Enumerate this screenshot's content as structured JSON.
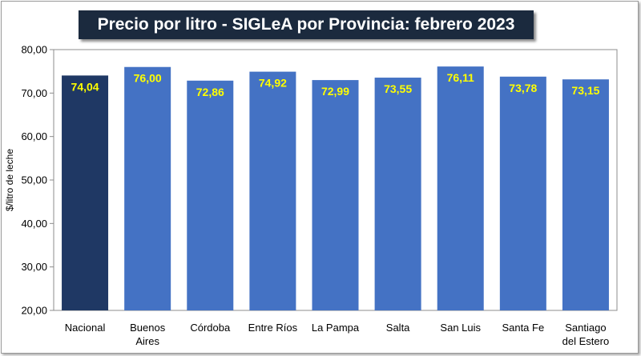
{
  "chart_data": {
    "type": "bar",
    "title": "Precio por litro - SIGLeA por Provincia: febrero 2023",
    "ylabel": "$/litro de leche",
    "xlabel": "",
    "ylim": [
      20,
      80
    ],
    "yticks": [
      "20,00",
      "30,00",
      "40,00",
      "50,00",
      "60,00",
      "70,00",
      "80,00"
    ],
    "categories": [
      [
        "Nacional"
      ],
      [
        "Buenos",
        "Aires"
      ],
      [
        "Córdoba"
      ],
      [
        "Entre Ríos"
      ],
      [
        "La Pampa"
      ],
      [
        "Salta"
      ],
      [
        "San Luis"
      ],
      [
        "Santa Fe"
      ],
      [
        "Santiago",
        "del Estero"
      ]
    ],
    "values": [
      74.04,
      76.0,
      72.86,
      74.92,
      72.99,
      73.55,
      76.11,
      73.78,
      73.15
    ],
    "value_labels": [
      "74,04",
      "76,00",
      "72,86",
      "74,92",
      "72,99",
      "73,55",
      "76,11",
      "73,78",
      "73,15"
    ],
    "colors": {
      "highlight": "#1f3864",
      "bar": "#4472c4",
      "label": "#ffff00",
      "plot_bg": "#ffffff"
    },
    "highlight_index": 0,
    "grid": false,
    "legend": "none"
  }
}
